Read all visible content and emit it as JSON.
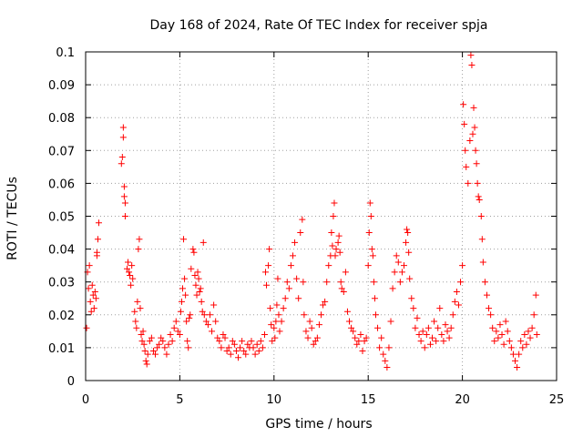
{
  "chart_data": {
    "type": "scatter",
    "title": "Day 168 of 2024, Rate Of TEC Index for receiver spja",
    "xlabel": "GPS time / hours",
    "ylabel": "ROTI / TECUs",
    "xlim": [
      0,
      25
    ],
    "ylim": [
      0,
      0.1
    ],
    "xticks": [
      "0",
      "5",
      "10",
      "15",
      "20",
      "25"
    ],
    "yticks": [
      "0",
      "0.01",
      "0.02",
      "0.03",
      "0.04",
      "0.05",
      "0.06",
      "0.07",
      "0.08",
      "0.09",
      "0.1"
    ],
    "grid": true,
    "marker": "plus",
    "color": "#ff0000",
    "series": [
      {
        "name": "ROTI",
        "points": [
          [
            0.05,
            0.016
          ],
          [
            0.1,
            0.033
          ],
          [
            0.15,
            0.028
          ],
          [
            0.2,
            0.035
          ],
          [
            0.25,
            0.024
          ],
          [
            0.3,
            0.021
          ],
          [
            0.35,
            0.029
          ],
          [
            0.4,
            0.026
          ],
          [
            0.45,
            0.022
          ],
          [
            0.5,
            0.027
          ],
          [
            0.55,
            0.025
          ],
          [
            0.6,
            0.039
          ],
          [
            0.65,
            0.043
          ],
          [
            0.7,
            0.048
          ],
          [
            0.6,
            0.038
          ],
          [
            1.9,
            0.066
          ],
          [
            1.95,
            0.068
          ],
          [
            2.0,
            0.077
          ],
          [
            2.0,
            0.074
          ],
          [
            2.05,
            0.059
          ],
          [
            2.05,
            0.056
          ],
          [
            2.1,
            0.054
          ],
          [
            2.1,
            0.05
          ],
          [
            2.2,
            0.034
          ],
          [
            2.25,
            0.036
          ],
          [
            2.3,
            0.033
          ],
          [
            2.35,
            0.032
          ],
          [
            2.4,
            0.029
          ],
          [
            2.45,
            0.035
          ],
          [
            2.5,
            0.031
          ],
          [
            2.6,
            0.021
          ],
          [
            2.65,
            0.018
          ],
          [
            2.7,
            0.016
          ],
          [
            2.75,
            0.024
          ],
          [
            2.8,
            0.04
          ],
          [
            2.85,
            0.043
          ],
          [
            2.9,
            0.022
          ],
          [
            2.95,
            0.014
          ],
          [
            3.0,
            0.012
          ],
          [
            3.05,
            0.015
          ],
          [
            3.1,
            0.011
          ],
          [
            3.15,
            0.009
          ],
          [
            3.2,
            0.006
          ],
          [
            3.25,
            0.005
          ],
          [
            3.3,
            0.008
          ],
          [
            3.4,
            0.012
          ],
          [
            3.5,
            0.013
          ],
          [
            3.6,
            0.009
          ],
          [
            3.7,
            0.008
          ],
          [
            3.8,
            0.01
          ],
          [
            3.9,
            0.011
          ],
          [
            4.0,
            0.013
          ],
          [
            4.1,
            0.012
          ],
          [
            4.2,
            0.01
          ],
          [
            4.3,
            0.008
          ],
          [
            4.4,
            0.011
          ],
          [
            4.5,
            0.014
          ],
          [
            4.6,
            0.012
          ],
          [
            4.7,
            0.016
          ],
          [
            4.8,
            0.018
          ],
          [
            4.9,
            0.015
          ],
          [
            5.0,
            0.014
          ],
          [
            5.05,
            0.021
          ],
          [
            5.1,
            0.024
          ],
          [
            5.15,
            0.028
          ],
          [
            5.2,
            0.043
          ],
          [
            5.25,
            0.031
          ],
          [
            5.3,
            0.026
          ],
          [
            5.35,
            0.018
          ],
          [
            5.4,
            0.012
          ],
          [
            5.45,
            0.01
          ],
          [
            5.5,
            0.019
          ],
          [
            5.55,
            0.02
          ],
          [
            5.6,
            0.034
          ],
          [
            5.7,
            0.04
          ],
          [
            5.75,
            0.039
          ],
          [
            5.8,
            0.032
          ],
          [
            5.85,
            0.029
          ],
          [
            5.9,
            0.026
          ],
          [
            5.95,
            0.033
          ],
          [
            6.0,
            0.031
          ],
          [
            6.05,
            0.027
          ],
          [
            6.1,
            0.028
          ],
          [
            6.15,
            0.024
          ],
          [
            6.2,
            0.021
          ],
          [
            6.25,
            0.042
          ],
          [
            6.3,
            0.02
          ],
          [
            6.4,
            0.018
          ],
          [
            6.5,
            0.017
          ],
          [
            6.6,
            0.02
          ],
          [
            6.7,
            0.015
          ],
          [
            6.8,
            0.023
          ],
          [
            6.9,
            0.018
          ],
          [
            7.0,
            0.013
          ],
          [
            7.1,
            0.012
          ],
          [
            7.2,
            0.01
          ],
          [
            7.3,
            0.014
          ],
          [
            7.4,
            0.013
          ],
          [
            7.5,
            0.009
          ],
          [
            7.6,
            0.01
          ],
          [
            7.7,
            0.008
          ],
          [
            7.8,
            0.012
          ],
          [
            7.9,
            0.011
          ],
          [
            8.0,
            0.009
          ],
          [
            8.1,
            0.007
          ],
          [
            8.2,
            0.01
          ],
          [
            8.3,
            0.012
          ],
          [
            8.4,
            0.009
          ],
          [
            8.5,
            0.008
          ],
          [
            8.6,
            0.011
          ],
          [
            8.7,
            0.01
          ],
          [
            8.8,
            0.012
          ],
          [
            8.9,
            0.01
          ],
          [
            9.0,
            0.008
          ],
          [
            9.1,
            0.011
          ],
          [
            9.2,
            0.009
          ],
          [
            9.3,
            0.012
          ],
          [
            9.4,
            0.01
          ],
          [
            9.5,
            0.014
          ],
          [
            9.55,
            0.033
          ],
          [
            9.6,
            0.029
          ],
          [
            9.7,
            0.035
          ],
          [
            9.75,
            0.04
          ],
          [
            9.8,
            0.022
          ],
          [
            9.85,
            0.017
          ],
          [
            9.9,
            0.012
          ],
          [
            10.0,
            0.016
          ],
          [
            10.05,
            0.013
          ],
          [
            10.1,
            0.018
          ],
          [
            10.15,
            0.023
          ],
          [
            10.2,
            0.031
          ],
          [
            10.25,
            0.02
          ],
          [
            10.3,
            0.015
          ],
          [
            10.4,
            0.018
          ],
          [
            10.5,
            0.022
          ],
          [
            10.6,
            0.025
          ],
          [
            10.7,
            0.03
          ],
          [
            10.8,
            0.028
          ],
          [
            10.9,
            0.035
          ],
          [
            11.0,
            0.038
          ],
          [
            11.1,
            0.042
          ],
          [
            11.2,
            0.031
          ],
          [
            11.3,
            0.025
          ],
          [
            11.4,
            0.045
          ],
          [
            11.5,
            0.049
          ],
          [
            11.55,
            0.03
          ],
          [
            11.6,
            0.02
          ],
          [
            11.7,
            0.015
          ],
          [
            11.8,
            0.013
          ],
          [
            11.9,
            0.018
          ],
          [
            12.0,
            0.016
          ],
          [
            12.1,
            0.011
          ],
          [
            12.2,
            0.012
          ],
          [
            12.3,
            0.013
          ],
          [
            12.4,
            0.017
          ],
          [
            12.5,
            0.02
          ],
          [
            12.6,
            0.023
          ],
          [
            12.7,
            0.024
          ],
          [
            12.8,
            0.03
          ],
          [
            12.9,
            0.035
          ],
          [
            13.0,
            0.038
          ],
          [
            13.05,
            0.045
          ],
          [
            13.1,
            0.041
          ],
          [
            13.15,
            0.05
          ],
          [
            13.2,
            0.054
          ],
          [
            13.25,
            0.038
          ],
          [
            13.3,
            0.04
          ],
          [
            13.4,
            0.042
          ],
          [
            13.45,
            0.044
          ],
          [
            13.5,
            0.039
          ],
          [
            13.55,
            0.03
          ],
          [
            13.6,
            0.028
          ],
          [
            13.7,
            0.027
          ],
          [
            13.8,
            0.033
          ],
          [
            13.9,
            0.021
          ],
          [
            14.0,
            0.018
          ],
          [
            14.1,
            0.016
          ],
          [
            14.2,
            0.015
          ],
          [
            14.3,
            0.013
          ],
          [
            14.4,
            0.011
          ],
          [
            14.5,
            0.012
          ],
          [
            14.6,
            0.014
          ],
          [
            14.7,
            0.009
          ],
          [
            14.8,
            0.012
          ],
          [
            14.9,
            0.013
          ],
          [
            15.0,
            0.035
          ],
          [
            15.05,
            0.045
          ],
          [
            15.1,
            0.054
          ],
          [
            15.15,
            0.05
          ],
          [
            15.2,
            0.04
          ],
          [
            15.25,
            0.038
          ],
          [
            15.3,
            0.03
          ],
          [
            15.35,
            0.025
          ],
          [
            15.4,
            0.02
          ],
          [
            15.5,
            0.016
          ],
          [
            15.6,
            0.01
          ],
          [
            15.7,
            0.013
          ],
          [
            15.8,
            0.008
          ],
          [
            15.9,
            0.006
          ],
          [
            16.0,
            0.004
          ],
          [
            16.1,
            0.01
          ],
          [
            16.2,
            0.018
          ],
          [
            16.3,
            0.028
          ],
          [
            16.4,
            0.033
          ],
          [
            16.5,
            0.038
          ],
          [
            16.6,
            0.036
          ],
          [
            16.7,
            0.03
          ],
          [
            16.8,
            0.033
          ],
          [
            16.9,
            0.035
          ],
          [
            17.0,
            0.042
          ],
          [
            17.05,
            0.046
          ],
          [
            17.1,
            0.045
          ],
          [
            17.15,
            0.039
          ],
          [
            17.2,
            0.031
          ],
          [
            17.3,
            0.025
          ],
          [
            17.4,
            0.022
          ],
          [
            17.5,
            0.016
          ],
          [
            17.6,
            0.019
          ],
          [
            17.7,
            0.014
          ],
          [
            17.8,
            0.012
          ],
          [
            17.9,
            0.015
          ],
          [
            18.0,
            0.01
          ],
          [
            18.1,
            0.014
          ],
          [
            18.2,
            0.016
          ],
          [
            18.3,
            0.011
          ],
          [
            18.4,
            0.013
          ],
          [
            18.5,
            0.018
          ],
          [
            18.6,
            0.012
          ],
          [
            18.7,
            0.016
          ],
          [
            18.8,
            0.022
          ],
          [
            18.9,
            0.014
          ],
          [
            19.0,
            0.012
          ],
          [
            19.1,
            0.017
          ],
          [
            19.2,
            0.015
          ],
          [
            19.3,
            0.013
          ],
          [
            19.4,
            0.016
          ],
          [
            19.5,
            0.02
          ],
          [
            19.6,
            0.024
          ],
          [
            19.7,
            0.027
          ],
          [
            19.8,
            0.023
          ],
          [
            19.9,
            0.03
          ],
          [
            20.0,
            0.035
          ],
          [
            20.05,
            0.084
          ],
          [
            20.1,
            0.078
          ],
          [
            20.15,
            0.07
          ],
          [
            20.2,
            0.065
          ],
          [
            20.3,
            0.06
          ],
          [
            20.4,
            0.073
          ],
          [
            20.45,
            0.099
          ],
          [
            20.5,
            0.096
          ],
          [
            20.55,
            0.075
          ],
          [
            20.6,
            0.083
          ],
          [
            20.65,
            0.077
          ],
          [
            20.7,
            0.07
          ],
          [
            20.75,
            0.066
          ],
          [
            20.8,
            0.06
          ],
          [
            20.85,
            0.056
          ],
          [
            20.9,
            0.055
          ],
          [
            21.0,
            0.05
          ],
          [
            21.05,
            0.043
          ],
          [
            21.1,
            0.036
          ],
          [
            21.2,
            0.03
          ],
          [
            21.3,
            0.026
          ],
          [
            21.4,
            0.022
          ],
          [
            21.5,
            0.02
          ],
          [
            21.6,
            0.016
          ],
          [
            21.7,
            0.012
          ],
          [
            21.8,
            0.015
          ],
          [
            21.9,
            0.013
          ],
          [
            22.0,
            0.017
          ],
          [
            22.1,
            0.014
          ],
          [
            22.2,
            0.011
          ],
          [
            22.3,
            0.018
          ],
          [
            22.4,
            0.015
          ],
          [
            22.5,
            0.012
          ],
          [
            22.6,
            0.01
          ],
          [
            22.7,
            0.008
          ],
          [
            22.8,
            0.006
          ],
          [
            22.9,
            0.004
          ],
          [
            23.0,
            0.008
          ],
          [
            23.1,
            0.012
          ],
          [
            23.2,
            0.01
          ],
          [
            23.3,
            0.014
          ],
          [
            23.4,
            0.011
          ],
          [
            23.5,
            0.015
          ],
          [
            23.6,
            0.013
          ],
          [
            23.7,
            0.016
          ],
          [
            23.8,
            0.02
          ],
          [
            23.9,
            0.026
          ],
          [
            23.95,
            0.014
          ]
        ]
      }
    ]
  }
}
